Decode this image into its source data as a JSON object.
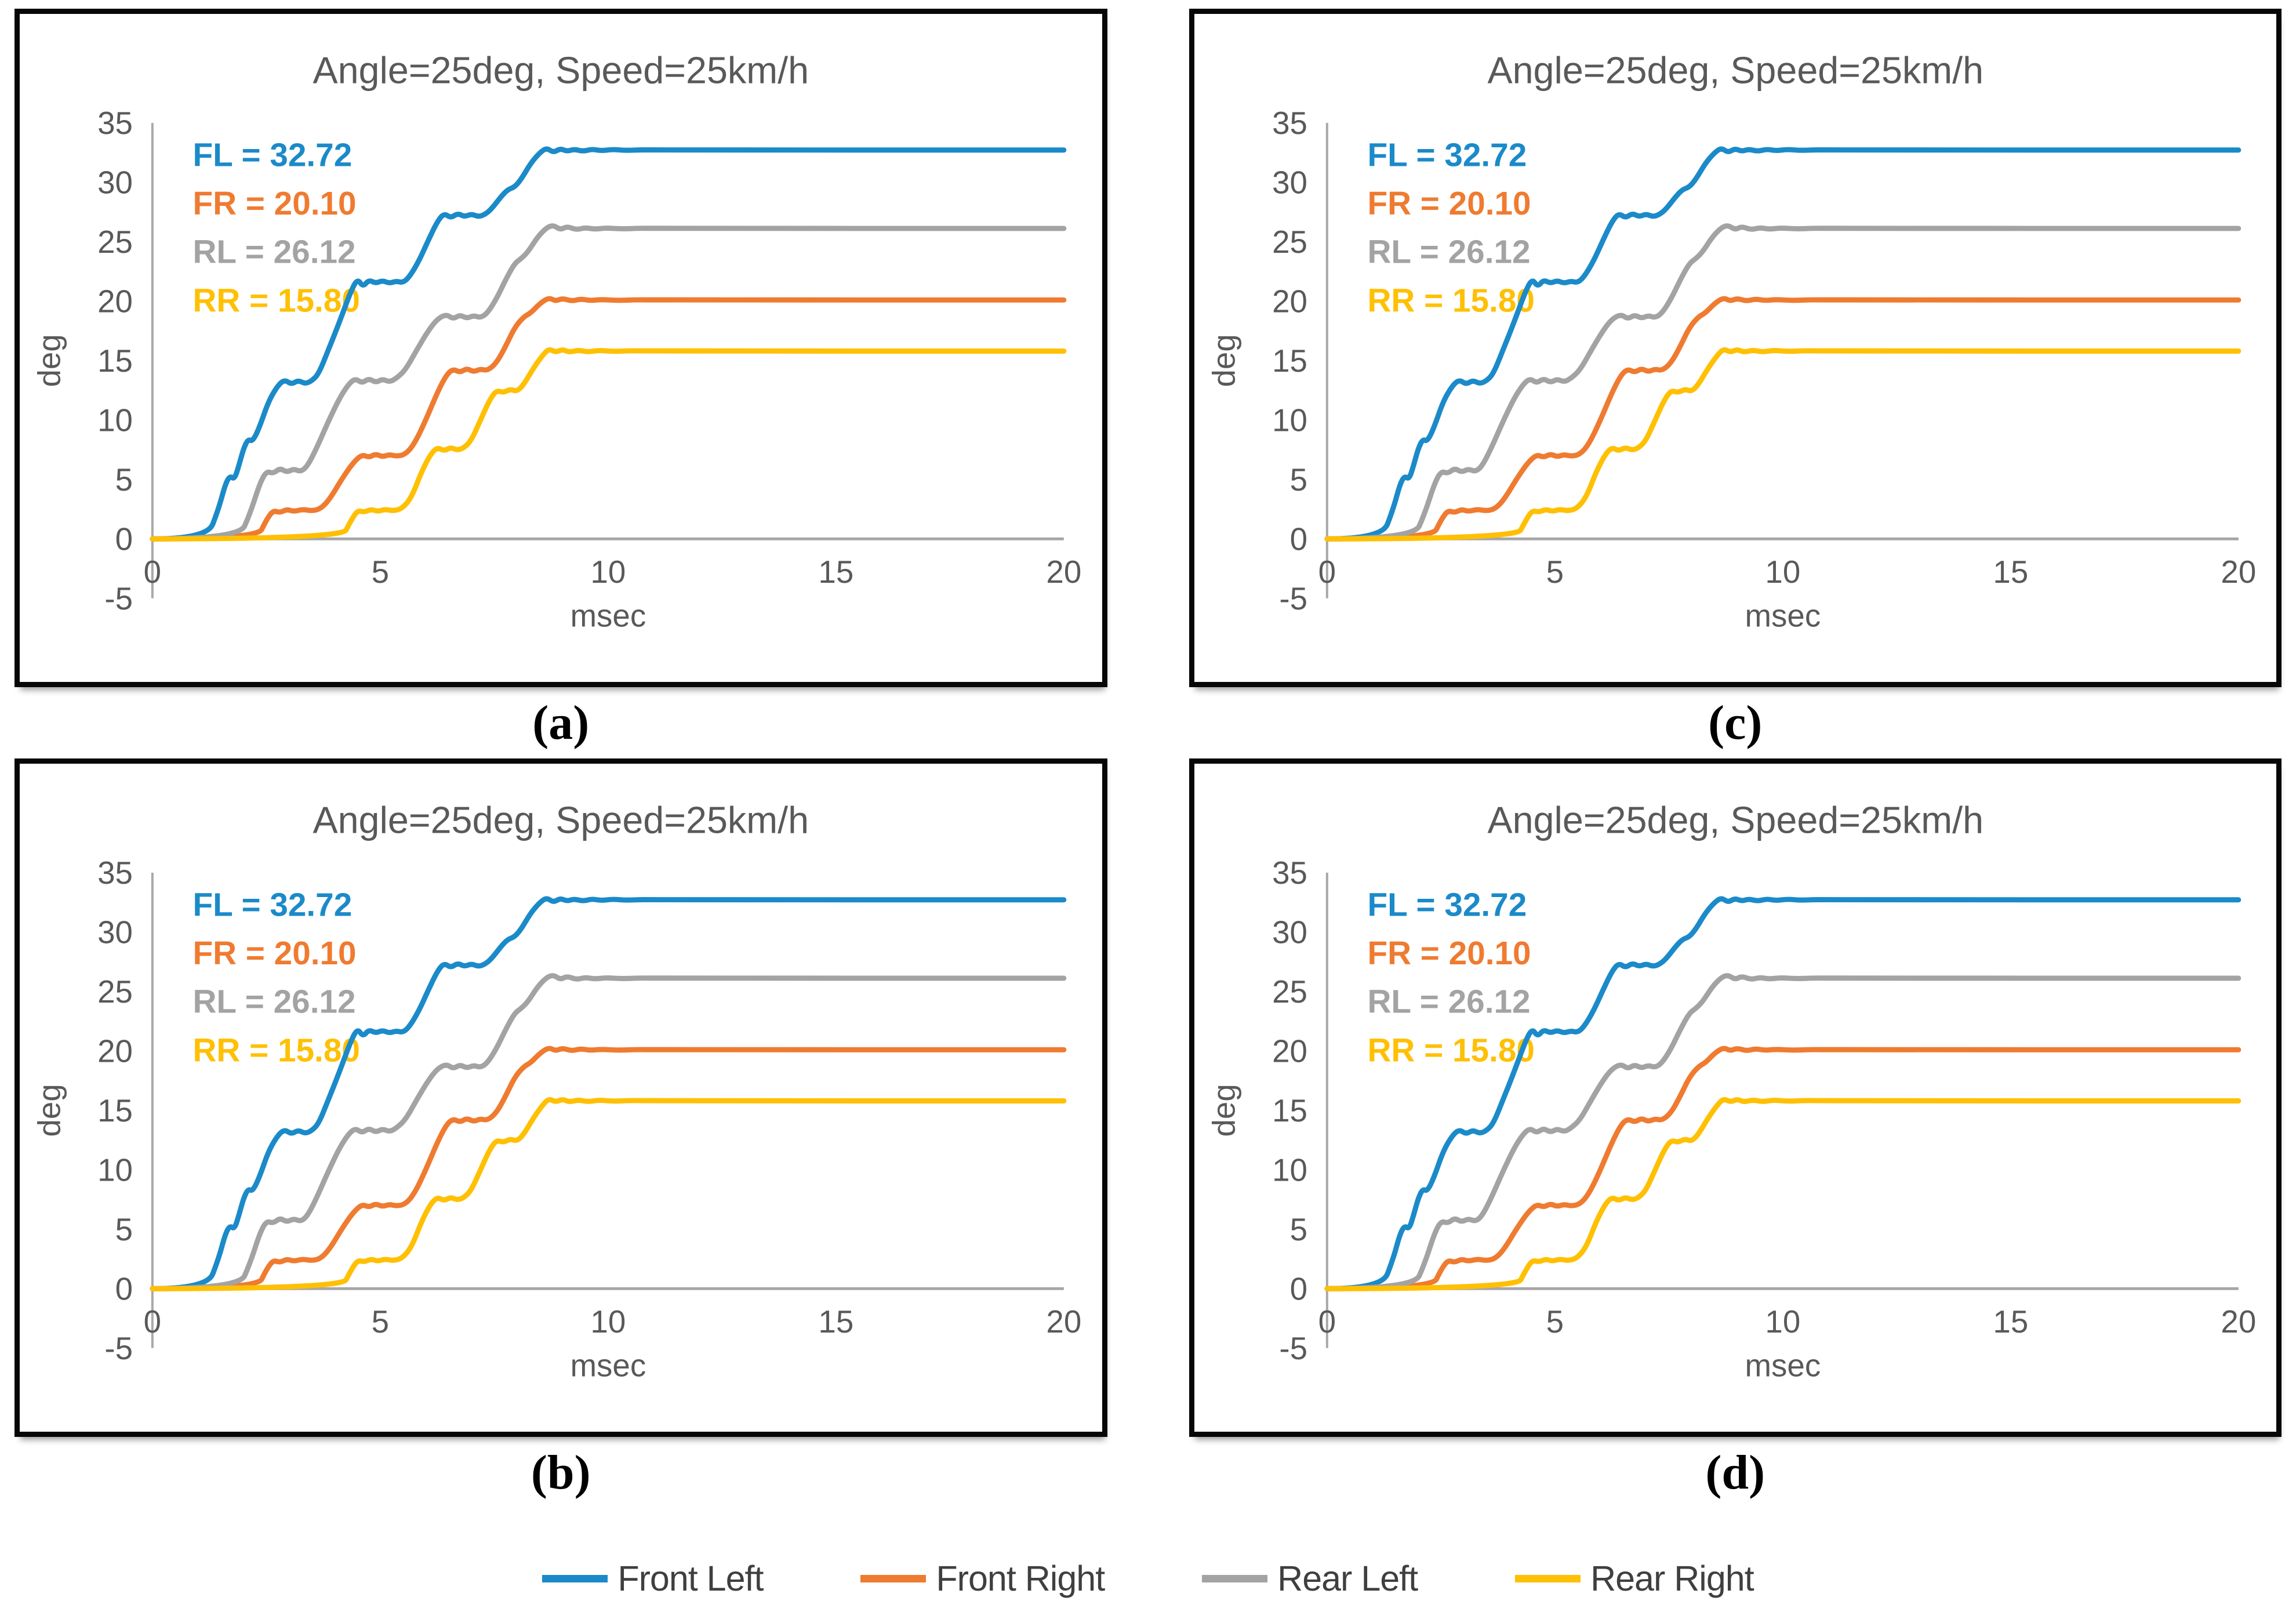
{
  "figure": {
    "panels": [
      {
        "id": "a",
        "label": "(a)"
      },
      {
        "id": "c",
        "label": "(c)"
      },
      {
        "id": "b",
        "label": "(b)"
      },
      {
        "id": "d",
        "label": "(d)"
      }
    ],
    "note": "Four panels (a), (b), (c), (d) each display an identical chart"
  },
  "chart_data": {
    "type": "line",
    "title": "Angle=25deg, Speed=25km/h",
    "xlabel": "msec",
    "ylabel": "deg",
    "xlim": [
      0,
      20
    ],
    "ylim": [
      -5,
      35
    ],
    "xticks": [
      0,
      5,
      10,
      15,
      20
    ],
    "yticks": [
      35,
      30,
      25,
      20,
      15,
      10,
      5,
      0,
      -5
    ],
    "grid": "zero-line-only",
    "legend_position": "bottom-shared",
    "annotations": [
      {
        "abbr": "FL",
        "text": "FL = 32.72",
        "color": "#1b8ac9"
      },
      {
        "abbr": "FR",
        "text": "FR = 20.10",
        "color": "#ef7b30"
      },
      {
        "abbr": "RL",
        "text": "RL = 26.12",
        "color": "#a3a3a3"
      },
      {
        "abbr": "RR",
        "text": "RR = 15.80",
        "color": "#ffc003"
      }
    ],
    "series": [
      {
        "name": "Front Left",
        "abbr": "FL",
        "final_value": 32.72,
        "color": "#1b8ac9",
        "points": [
          [
            0,
            0
          ],
          [
            1.2,
            0
          ],
          [
            1.45,
            2.5
          ],
          [
            1.6,
            4.6
          ],
          [
            1.7,
            5.3
          ],
          [
            1.8,
            5.0
          ],
          [
            1.9,
            6.2
          ],
          [
            2.0,
            7.6
          ],
          [
            2.1,
            8.4
          ],
          [
            2.2,
            8.2
          ],
          [
            2.35,
            9.4
          ],
          [
            2.55,
            11.6
          ],
          [
            2.75,
            12.9
          ],
          [
            2.9,
            13.4
          ],
          [
            3.05,
            13.0
          ],
          [
            3.2,
            13.35
          ],
          [
            3.35,
            13.05
          ],
          [
            3.5,
            13.3
          ],
          [
            3.65,
            13.9
          ],
          [
            3.85,
            15.8
          ],
          [
            4.1,
            18.2
          ],
          [
            4.35,
            20.8
          ],
          [
            4.5,
            21.9
          ],
          [
            4.62,
            21.2
          ],
          [
            4.75,
            21.8
          ],
          [
            4.9,
            21.5
          ],
          [
            5.05,
            21.75
          ],
          [
            5.2,
            21.5
          ],
          [
            5.35,
            21.7
          ],
          [
            5.5,
            21.55
          ],
          [
            5.65,
            22.1
          ],
          [
            5.85,
            23.4
          ],
          [
            6.05,
            25.1
          ],
          [
            6.25,
            26.7
          ],
          [
            6.4,
            27.4
          ],
          [
            6.55,
            27.0
          ],
          [
            6.7,
            27.4
          ],
          [
            6.85,
            27.1
          ],
          [
            7.0,
            27.35
          ],
          [
            7.15,
            27.1
          ],
          [
            7.3,
            27.3
          ],
          [
            7.45,
            27.8
          ],
          [
            7.65,
            28.8
          ],
          [
            7.8,
            29.4
          ],
          [
            7.95,
            29.6
          ],
          [
            8.1,
            30.3
          ],
          [
            8.3,
            31.6
          ],
          [
            8.5,
            32.5
          ],
          [
            8.65,
            32.9
          ],
          [
            8.8,
            32.5
          ],
          [
            8.95,
            32.85
          ],
          [
            9.1,
            32.6
          ],
          [
            9.25,
            32.8
          ],
          [
            9.45,
            32.6
          ],
          [
            9.65,
            32.8
          ],
          [
            9.85,
            32.65
          ],
          [
            10.1,
            32.78
          ],
          [
            10.4,
            32.68
          ],
          [
            10.7,
            32.74
          ],
          [
            11,
            32.72
          ],
          [
            20,
            32.72
          ]
        ]
      },
      {
        "name": "Front Right",
        "abbr": "FR",
        "final_value": 20.1,
        "color": "#ef7b30",
        "points": [
          [
            0,
            0
          ],
          [
            2.3,
            0
          ],
          [
            2.5,
            1.6
          ],
          [
            2.65,
            2.4
          ],
          [
            2.8,
            2.2
          ],
          [
            2.95,
            2.5
          ],
          [
            3.1,
            2.3
          ],
          [
            3.3,
            2.5
          ],
          [
            3.5,
            2.35
          ],
          [
            3.7,
            2.55
          ],
          [
            3.9,
            3.4
          ],
          [
            4.15,
            5.0
          ],
          [
            4.4,
            6.4
          ],
          [
            4.6,
            7.1
          ],
          [
            4.75,
            6.85
          ],
          [
            4.9,
            7.15
          ],
          [
            5.05,
            6.9
          ],
          [
            5.2,
            7.1
          ],
          [
            5.35,
            6.95
          ],
          [
            5.55,
            7.1
          ],
          [
            5.75,
            8.0
          ],
          [
            6.0,
            10.0
          ],
          [
            6.25,
            12.3
          ],
          [
            6.45,
            13.8
          ],
          [
            6.6,
            14.3
          ],
          [
            6.75,
            14.0
          ],
          [
            6.9,
            14.35
          ],
          [
            7.05,
            14.05
          ],
          [
            7.2,
            14.3
          ],
          [
            7.35,
            14.15
          ],
          [
            7.55,
            14.8
          ],
          [
            7.75,
            16.2
          ],
          [
            7.95,
            17.8
          ],
          [
            8.15,
            18.7
          ],
          [
            8.3,
            19.0
          ],
          [
            8.5,
            19.8
          ],
          [
            8.7,
            20.3
          ],
          [
            8.85,
            20.0
          ],
          [
            9.0,
            20.25
          ],
          [
            9.2,
            20.0
          ],
          [
            9.4,
            20.2
          ],
          [
            9.6,
            20.05
          ],
          [
            9.85,
            20.15
          ],
          [
            10.2,
            20.06
          ],
          [
            10.6,
            20.12
          ],
          [
            11,
            20.1
          ],
          [
            20,
            20.1
          ]
        ]
      },
      {
        "name": "Rear Left",
        "abbr": "RL",
        "final_value": 26.12,
        "color": "#a3a3a3",
        "points": [
          [
            0,
            0
          ],
          [
            1.9,
            0
          ],
          [
            2.15,
            2.2
          ],
          [
            2.35,
            4.6
          ],
          [
            2.5,
            5.7
          ],
          [
            2.65,
            5.5
          ],
          [
            2.8,
            5.95
          ],
          [
            2.95,
            5.6
          ],
          [
            3.1,
            5.9
          ],
          [
            3.25,
            5.65
          ],
          [
            3.4,
            6.1
          ],
          [
            3.6,
            7.6
          ],
          [
            3.85,
            9.8
          ],
          [
            4.1,
            11.8
          ],
          [
            4.3,
            13.0
          ],
          [
            4.45,
            13.5
          ],
          [
            4.6,
            13.1
          ],
          [
            4.75,
            13.5
          ],
          [
            4.9,
            13.15
          ],
          [
            5.05,
            13.45
          ],
          [
            5.2,
            13.2
          ],
          [
            5.35,
            13.5
          ],
          [
            5.55,
            14.2
          ],
          [
            5.8,
            15.9
          ],
          [
            6.05,
            17.5
          ],
          [
            6.25,
            18.5
          ],
          [
            6.45,
            18.9
          ],
          [
            6.6,
            18.5
          ],
          [
            6.75,
            18.85
          ],
          [
            6.9,
            18.55
          ],
          [
            7.05,
            18.8
          ],
          [
            7.2,
            18.6
          ],
          [
            7.35,
            19.0
          ],
          [
            7.55,
            20.2
          ],
          [
            7.75,
            21.8
          ],
          [
            7.95,
            23.2
          ],
          [
            8.1,
            23.6
          ],
          [
            8.25,
            24.2
          ],
          [
            8.45,
            25.4
          ],
          [
            8.65,
            26.2
          ],
          [
            8.8,
            26.4
          ],
          [
            8.95,
            26.0
          ],
          [
            9.1,
            26.3
          ],
          [
            9.3,
            26.0
          ],
          [
            9.5,
            26.2
          ],
          [
            9.7,
            26.05
          ],
          [
            9.95,
            26.17
          ],
          [
            10.3,
            26.08
          ],
          [
            10.7,
            26.14
          ],
          [
            11,
            26.12
          ],
          [
            20,
            26.12
          ]
        ]
      },
      {
        "name": "Rear Right",
        "abbr": "RR",
        "final_value": 15.8,
        "color": "#ffc003",
        "points": [
          [
            0,
            0
          ],
          [
            4.15,
            0
          ],
          [
            4.35,
            1.5
          ],
          [
            4.5,
            2.4
          ],
          [
            4.65,
            2.25
          ],
          [
            4.8,
            2.5
          ],
          [
            4.95,
            2.3
          ],
          [
            5.1,
            2.5
          ],
          [
            5.3,
            2.35
          ],
          [
            5.5,
            2.6
          ],
          [
            5.7,
            3.6
          ],
          [
            5.9,
            5.6
          ],
          [
            6.1,
            7.1
          ],
          [
            6.25,
            7.7
          ],
          [
            6.4,
            7.4
          ],
          [
            6.55,
            7.7
          ],
          [
            6.7,
            7.45
          ],
          [
            6.85,
            7.7
          ],
          [
            7.0,
            8.3
          ],
          [
            7.2,
            10.0
          ],
          [
            7.4,
            11.7
          ],
          [
            7.55,
            12.5
          ],
          [
            7.7,
            12.3
          ],
          [
            7.85,
            12.6
          ],
          [
            8.0,
            12.4
          ],
          [
            8.15,
            13.0
          ],
          [
            8.35,
            14.3
          ],
          [
            8.55,
            15.4
          ],
          [
            8.7,
            16.0
          ],
          [
            8.85,
            15.7
          ],
          [
            9.0,
            15.95
          ],
          [
            9.15,
            15.7
          ],
          [
            9.35,
            15.9
          ],
          [
            9.55,
            15.72
          ],
          [
            9.8,
            15.88
          ],
          [
            10.1,
            15.76
          ],
          [
            10.5,
            15.84
          ],
          [
            11,
            15.8
          ],
          [
            20,
            15.8
          ]
        ]
      }
    ]
  },
  "legend": {
    "items": [
      {
        "label": "Front Left",
        "color": "#1b8ac9"
      },
      {
        "label": "Front Right",
        "color": "#ef7b30"
      },
      {
        "label": "Rear Left",
        "color": "#a3a3a3"
      },
      {
        "label": "Rear Right",
        "color": "#ffc003"
      }
    ]
  },
  "colors": {
    "front_left": "#1b8ac9",
    "front_right": "#ef7b30",
    "rear_left": "#a3a3a3",
    "rear_right": "#ffc003",
    "axis_line": "#a6a6a6",
    "chart_text": "#595959",
    "legend_text": "#3f3f3f",
    "panel_border": "#070707"
  }
}
